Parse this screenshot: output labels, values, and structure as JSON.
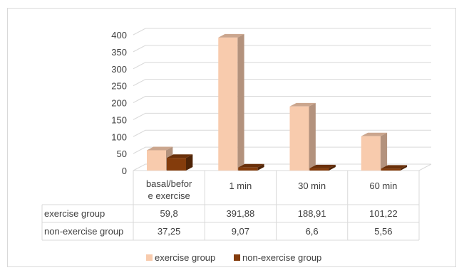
{
  "chart_data": {
    "type": "bar",
    "style": "3d-clustered-column",
    "categories": [
      "basal/before exercise",
      "1 min",
      "30 min",
      "60 min"
    ],
    "category_label_lines": [
      [
        "basal/befor",
        "e exercise"
      ],
      [
        "1 min"
      ],
      [
        "30 min"
      ],
      [
        "60 min"
      ]
    ],
    "series": [
      {
        "name": "exercise group",
        "values": [
          59.8,
          391.88,
          188.91,
          101.22
        ],
        "value_labels": [
          "59,8",
          "391,88",
          "188,91",
          "101,22"
        ],
        "color": "#F8CBAD"
      },
      {
        "name": "non-exercise group",
        "values": [
          37.25,
          9.07,
          6.6,
          5.56
        ],
        "value_labels": [
          "37,25",
          "9,07",
          "6,6",
          "5,56"
        ],
        "color": "#843C0C"
      }
    ],
    "yticks": [
      0,
      50,
      100,
      150,
      200,
      250,
      300,
      350,
      400
    ],
    "ylim": [
      0,
      400
    ],
    "grid": true,
    "legend": "bottom",
    "data_table": true,
    "title": "",
    "xlabel": "",
    "ylabel": ""
  }
}
